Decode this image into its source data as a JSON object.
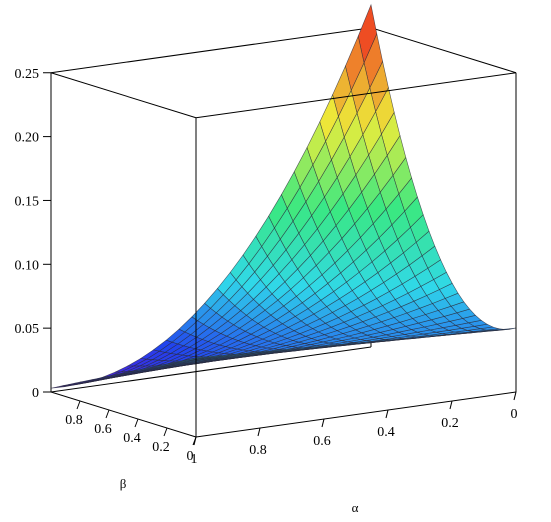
{
  "chart_data": {
    "type": "surface3d",
    "x_name": "α",
    "y_name": "β",
    "xlabel": "α",
    "ylabel": "β",
    "zlabel": "",
    "x_range": [
      0,
      1
    ],
    "y_range": [
      0,
      1
    ],
    "z_range": [
      0,
      0.25
    ],
    "x_ticks": [
      "1",
      "0.8",
      "0.6",
      "0.4",
      "0.2",
      "0"
    ],
    "y_ticks": [
      "0",
      "0.2",
      "0.4",
      "0.6",
      "0.8"
    ],
    "z_ticks": [
      "0",
      "0.05",
      "0.10",
      "0.15",
      "0.20",
      "0.25"
    ],
    "grid_resolution": 25,
    "corner_values": [
      {
        "alpha": 0,
        "beta": 0,
        "z": 0.05
      },
      {
        "alpha": 1,
        "beta": 0,
        "z": 0.062
      },
      {
        "alpha": 1,
        "beta": 1,
        "z": 0.003
      },
      {
        "alpha": 0,
        "beta": 1,
        "z": 0.25
      }
    ],
    "colormap": [
      "#5b0fd6",
      "#2244ee",
      "#30d8ea",
      "#3ae882",
      "#eded3a",
      "#ee4422"
    ],
    "grid": false,
    "legend": "none"
  }
}
